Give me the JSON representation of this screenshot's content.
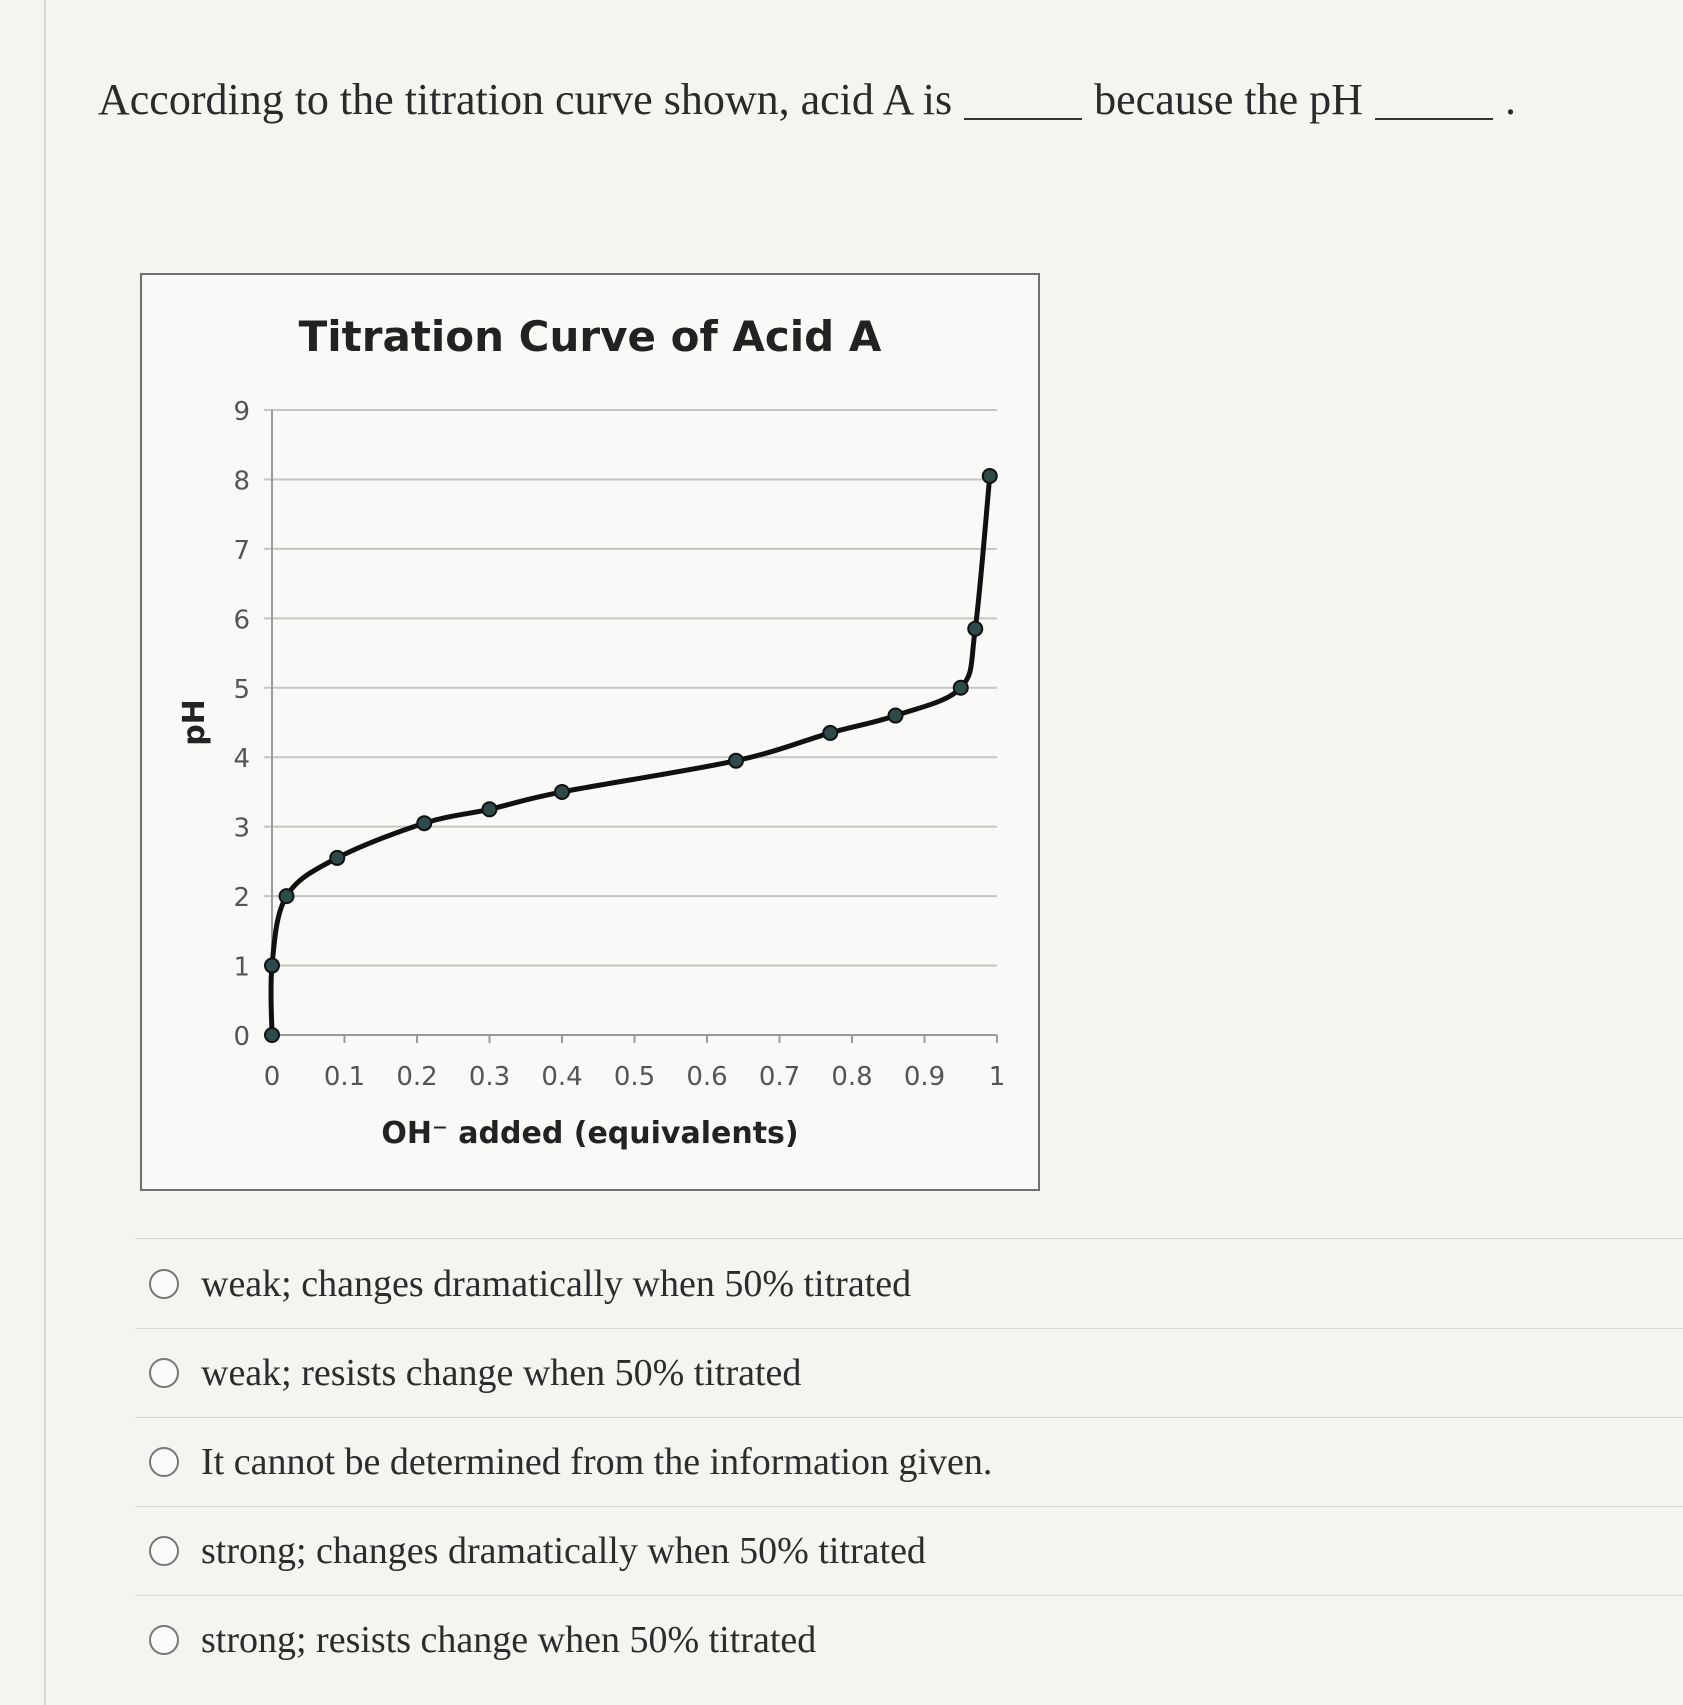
{
  "question": {
    "part1": "According to the titration curve shown, acid A is",
    "part2": "because the pH",
    "end": "."
  },
  "options": [
    {
      "label": "weak; changes dramatically when 50% titrated"
    },
    {
      "label": "weak; resists change when 50% titrated"
    },
    {
      "label": "It cannot be determined from the information given."
    },
    {
      "label": "strong; changes dramatically when 50% titrated"
    },
    {
      "label": "strong; resists change when 50% titrated"
    }
  ],
  "chart_data": {
    "type": "line",
    "title": "Titration Curve of Acid A",
    "xlabel": "OH⁻ added (equivalents)",
    "ylabel": "pH",
    "xlim": [
      0,
      1
    ],
    "ylim": [
      0,
      9
    ],
    "xticks": [
      "0",
      "0.1",
      "0.2",
      "0.3",
      "0.4",
      "0.5",
      "0.6",
      "0.7",
      "0.8",
      "0.9",
      "1"
    ],
    "yticks": [
      "0",
      "1",
      "2",
      "3",
      "4",
      "5",
      "6",
      "7",
      "8",
      "9"
    ],
    "grid": true,
    "series": [
      {
        "color": "#111111",
        "marker_color": "#2f4a4a",
        "points": [
          [
            0.0,
            0.0
          ],
          [
            0.0,
            1.0
          ],
          [
            0.02,
            2.0
          ],
          [
            0.09,
            2.55
          ],
          [
            0.21,
            3.05
          ],
          [
            0.3,
            3.25
          ],
          [
            0.4,
            3.5
          ],
          [
            0.64,
            3.95
          ],
          [
            0.77,
            4.35
          ],
          [
            0.86,
            4.6
          ],
          [
            0.95,
            5.0
          ],
          [
            0.97,
            5.85
          ],
          [
            0.99,
            8.05
          ]
        ]
      }
    ]
  }
}
